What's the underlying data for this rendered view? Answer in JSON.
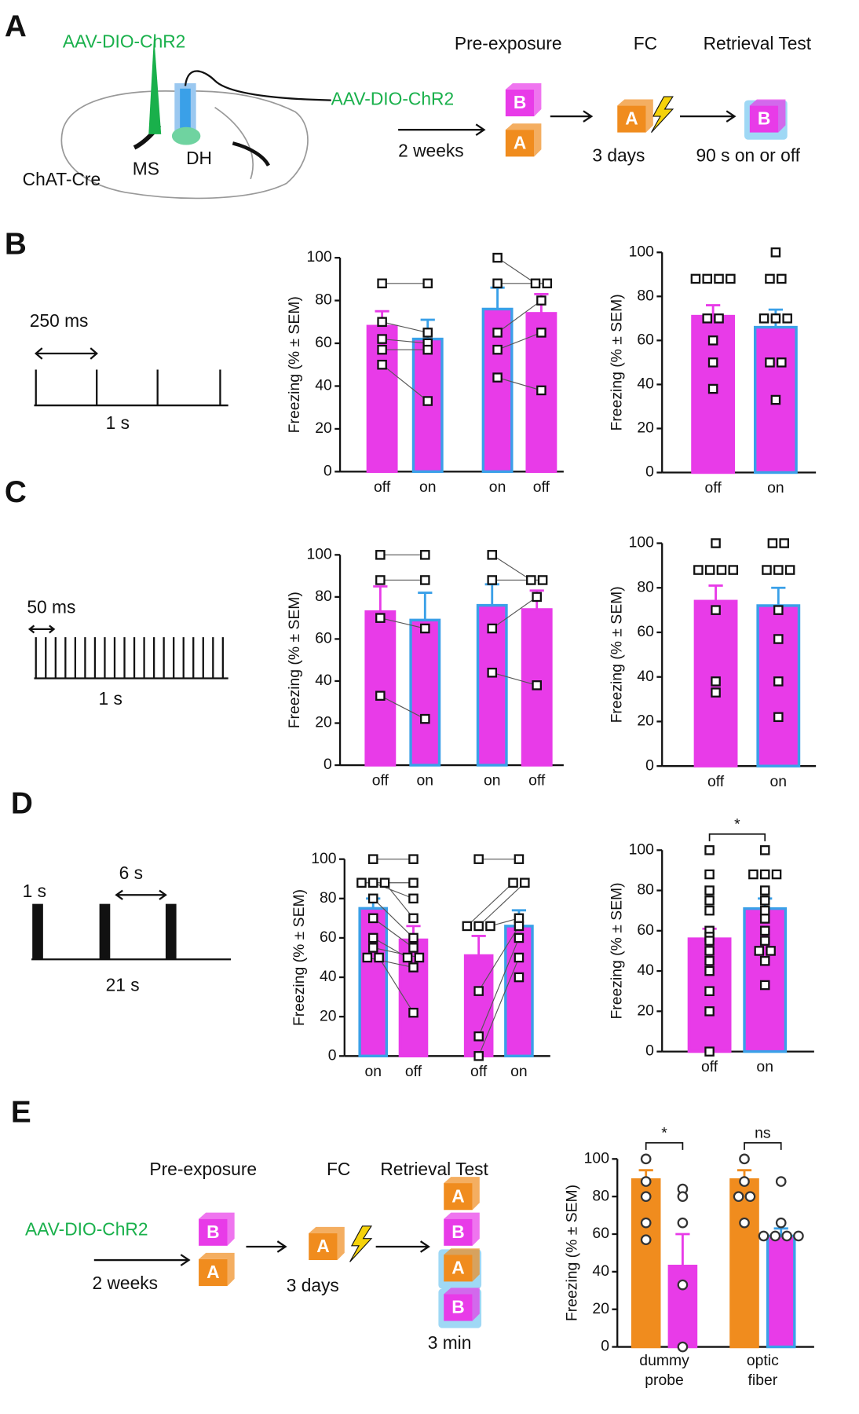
{
  "panels": {
    "letters": [
      "A",
      "B",
      "C",
      "D",
      "E"
    ],
    "A": {
      "virus": "AAV-DIO-ChR2",
      "mouse": "ChAT-Cre",
      "ms": "MS",
      "dh": "DH",
      "steps": [
        "Pre-exposure",
        "FC",
        "Retrieval Test"
      ],
      "virus2": "AAV-DIO-ChR2",
      "boxes": [
        "B",
        "A",
        "A",
        "B"
      ],
      "intervals": [
        "2 weeks",
        "3 days",
        "90 s on or off"
      ]
    },
    "B": {
      "pulse": "250 ms",
      "duration": "1 s"
    },
    "C": {
      "pulse": "50 ms",
      "duration": "1 s"
    },
    "D": {
      "pulse": "1 s",
      "gap": "6 s",
      "duration": "21 s"
    },
    "E": {
      "steps": [
        "Pre-exposure",
        "FC",
        "Retrieval Test"
      ],
      "virus": "AAV-DIO-ChR2",
      "boxes": [
        "B",
        "A",
        "A",
        "A",
        "B",
        "A",
        "B"
      ],
      "intervals": [
        "2 weeks",
        "3 days",
        "3 min"
      ]
    }
  },
  "chart_data": [
    {
      "type": "bar",
      "ylabel": "Freezing (% ± SEM)",
      "categories": [
        "off",
        "on",
        "on",
        "off"
      ],
      "values": [
        68,
        62,
        76,
        74
      ],
      "errors": [
        7,
        9,
        10,
        9
      ],
      "colors": [
        "#e83be8",
        "#e83be8",
        "#e83be8",
        "#e83be8"
      ],
      "edge_colors": [
        "#e83be8",
        "#3aa0e8",
        "#3aa0e8",
        "#e83be8"
      ],
      "points": [
        [
          88,
          70,
          62,
          57,
          50
        ],
        [
          88,
          65,
          60,
          57,
          33
        ],
        [
          100,
          88,
          65,
          57,
          44
        ],
        [
          88,
          88,
          80,
          65,
          38
        ]
      ],
      "marker": "square",
      "paired": true,
      "ylim": [
        0,
        100
      ],
      "yticks": [
        0,
        20,
        40,
        60,
        80,
        100
      ]
    },
    {
      "type": "bar",
      "ylabel": "Freezing (% ± SEM)",
      "categories": [
        "off",
        "on"
      ],
      "values": [
        71,
        66
      ],
      "errors": [
        5,
        8
      ],
      "colors": [
        "#e83be8",
        "#e83be8"
      ],
      "edge_colors": [
        "#e83be8",
        "#3aa0e8"
      ],
      "points": [
        [
          88,
          88,
          88,
          88,
          70,
          70,
          60,
          50,
          38
        ],
        [
          100,
          88,
          88,
          70,
          70,
          70,
          50,
          50,
          33
        ]
      ],
      "marker": "square",
      "paired": false,
      "ylim": [
        0,
        100
      ],
      "yticks": [
        0,
        20,
        40,
        60,
        80,
        100
      ]
    },
    {
      "type": "bar",
      "ylabel": "Freezing (% ± SEM)",
      "categories": [
        "off",
        "on",
        "on",
        "off"
      ],
      "values": [
        73,
        69,
        76,
        74
      ],
      "errors": [
        12,
        13,
        10,
        9
      ],
      "colors": [
        "#e83be8",
        "#e83be8",
        "#e83be8",
        "#e83be8"
      ],
      "edge_colors": [
        "#e83be8",
        "#3aa0e8",
        "#3aa0e8",
        "#e83be8"
      ],
      "points": [
        [
          100,
          88,
          70,
          33
        ],
        [
          100,
          88,
          65,
          22
        ],
        [
          100,
          88,
          65,
          44
        ],
        [
          88,
          88,
          80,
          38
        ]
      ],
      "marker": "square",
      "paired": true,
      "ylim": [
        0,
        100
      ],
      "yticks": [
        0,
        20,
        40,
        60,
        80,
        100
      ]
    },
    {
      "type": "bar",
      "ylabel": "Freezing (% ± SEM)",
      "categories": [
        "off",
        "on"
      ],
      "values": [
        74,
        72
      ],
      "errors": [
        7,
        8
      ],
      "colors": [
        "#e83be8",
        "#e83be8"
      ],
      "edge_colors": [
        "#e83be8",
        "#3aa0e8"
      ],
      "points": [
        [
          100,
          88,
          88,
          88,
          88,
          70,
          38,
          33
        ],
        [
          100,
          100,
          88,
          88,
          88,
          70,
          57,
          38,
          22
        ]
      ],
      "marker": "square",
      "paired": false,
      "ylim": [
        0,
        100
      ],
      "yticks": [
        0,
        20,
        40,
        60,
        80,
        100
      ]
    },
    {
      "type": "bar",
      "ylabel": "Freezing (% ± SEM)",
      "categories": [
        "on",
        "off",
        "off",
        "on"
      ],
      "values": [
        75,
        59,
        51,
        66
      ],
      "errors": [
        5,
        7,
        10,
        8
      ],
      "colors": [
        "#e83be8",
        "#e83be8",
        "#e83be8",
        "#e83be8"
      ],
      "edge_colors": [
        "#3aa0e8",
        "#e83be8",
        "#e83be8",
        "#3aa0e8"
      ],
      "points": [
        [
          100,
          88,
          88,
          88,
          80,
          70,
          60,
          55,
          50,
          50
        ],
        [
          100,
          88,
          80,
          70,
          60,
          55,
          50,
          50,
          45,
          22
        ],
        [
          100,
          66,
          66,
          66,
          33,
          10,
          0
        ],
        [
          100,
          88,
          88,
          70,
          66,
          60,
          50,
          40
        ]
      ],
      "marker": "square",
      "paired": true,
      "ylim": [
        0,
        100
      ],
      "yticks": [
        0,
        20,
        40,
        60,
        80,
        100
      ]
    },
    {
      "type": "bar",
      "ylabel": "Freezing (% ± SEM)",
      "categories": [
        "off",
        "on"
      ],
      "values": [
        56,
        71
      ],
      "errors": [
        5,
        5
      ],
      "colors": [
        "#e83be8",
        "#e83be8"
      ],
      "edge_colors": [
        "#e83be8",
        "#3aa0e8"
      ],
      "points": [
        [
          100,
          88,
          80,
          75,
          70,
          60,
          57,
          55,
          50,
          45,
          40,
          30,
          20,
          0
        ],
        [
          100,
          88,
          88,
          88,
          80,
          75,
          70,
          66,
          60,
          55,
          50,
          50,
          45,
          33
        ]
      ],
      "marker": "square",
      "paired": false,
      "comparisons": [
        "*"
      ],
      "ylim": [
        0,
        100
      ],
      "yticks": [
        0,
        20,
        40,
        60,
        80,
        100
      ]
    },
    {
      "type": "bar",
      "ylabel": "Freezing (% ± SEM)",
      "groups": [
        [
          "dummy",
          "probe"
        ],
        [
          "optic",
          "fiber"
        ]
      ],
      "values": [
        89,
        43,
        89,
        59
      ],
      "errors": [
        5,
        17,
        5,
        4
      ],
      "colors": [
        "#f08c1e",
        "#e83be8",
        "#f08c1e",
        "#e83be8"
      ],
      "edge_colors": [
        "#f08c1e",
        "#e83be8",
        "#f08c1e",
        "#3aa0e8"
      ],
      "points": [
        [
          100,
          88,
          80,
          66,
          57
        ],
        [
          84,
          80,
          66,
          33,
          0
        ],
        [
          100,
          88,
          80,
          80,
          66
        ],
        [
          88,
          66,
          59,
          59,
          59,
          59
        ]
      ],
      "marker": "circle",
      "paired": false,
      "comparisons": [
        "*",
        "ns"
      ],
      "ylim": [
        0,
        100
      ],
      "yticks": [
        0,
        20,
        40,
        60,
        80,
        100
      ]
    }
  ]
}
